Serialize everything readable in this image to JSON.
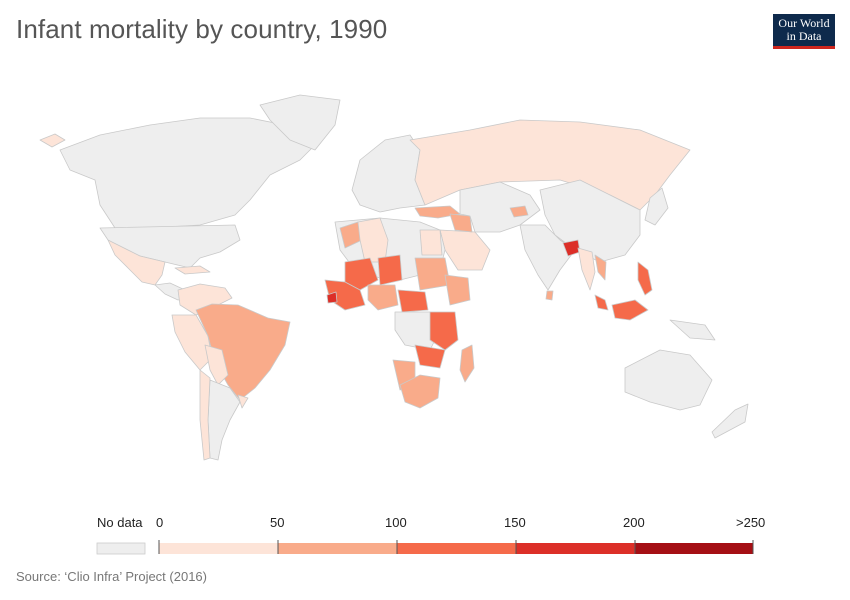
{
  "header": {
    "title": "Infant mortality by country, 1990",
    "logo_line1": "Our World",
    "logo_line2": "in Data"
  },
  "legend": {
    "no_data_label": "No data",
    "no_data_color": "#eeeeee",
    "ticks": [
      "0",
      "50",
      "100",
      "150",
      "200",
      ">250"
    ],
    "bins": [
      {
        "from": 0,
        "to": 50,
        "color": "#fde4d8"
      },
      {
        "from": 50,
        "to": 100,
        "color": "#f9ab8a"
      },
      {
        "from": 100,
        "to": 150,
        "color": "#f56a4a"
      },
      {
        "from": 150,
        "to": 200,
        "color": "#dc2f28"
      },
      {
        "from": 200,
        "to": 250,
        "color": "#a50f15"
      }
    ]
  },
  "source": "Source: ‘Clio Infra’ Project (2016)",
  "colors": {
    "no_data": "#eeeeee",
    "border": "#c9c9c9",
    "bin_0_50": "#fde4d8",
    "bin_50_100": "#f9ab8a",
    "bin_100_150": "#f56a4a",
    "bin_150_200": "#dc2f28",
    "bin_200_250": "#a50f15"
  }
}
